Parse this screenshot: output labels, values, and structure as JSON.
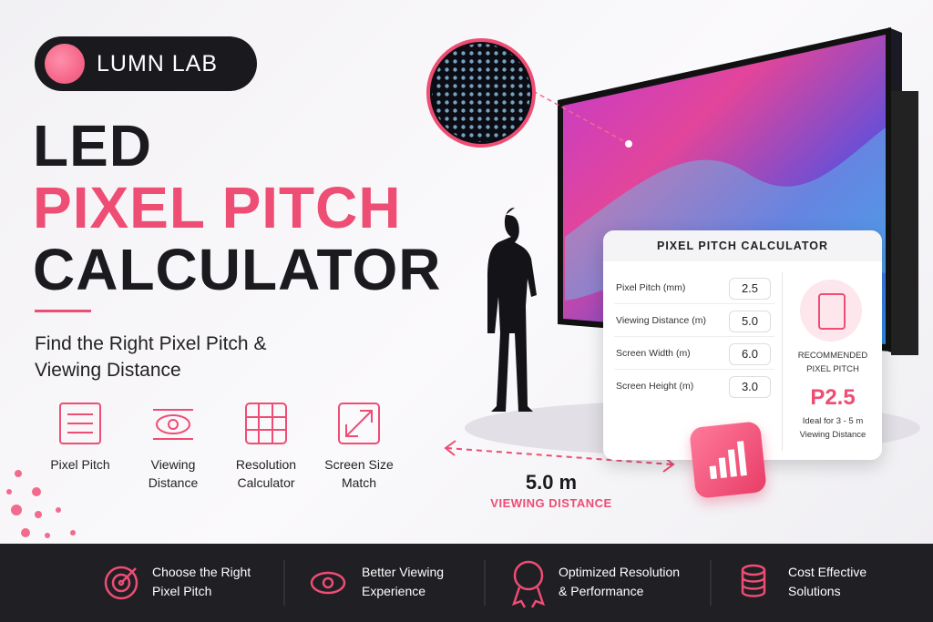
{
  "brand": "LUMN LAB",
  "headline": {
    "line1": "LED",
    "line2": "PIXEL PITCH",
    "line3": "CALCULATOR"
  },
  "subtitle_lines": [
    "Find the Right Pixel Pitch &",
    "Viewing Distance"
  ],
  "features": [
    {
      "lines": [
        "Pixel Pitch"
      ]
    },
    {
      "lines": [
        "Viewing",
        "Distance"
      ]
    },
    {
      "lines": [
        "Resolution",
        "Calculator"
      ]
    },
    {
      "lines": [
        "Screen Size",
        "Match"
      ]
    }
  ],
  "calculator": {
    "title": "PIXEL PITCH CALCULATOR",
    "fields": [
      {
        "label": "Pixel Pitch (mm)",
        "value": "2.5"
      },
      {
        "label": "Viewing Distance (m)",
        "value": "5.0"
      },
      {
        "label": "Screen Width (m)",
        "value": "6.0"
      },
      {
        "label": "Screen Height (m)",
        "value": "3.0"
      }
    ],
    "result_label_lines": [
      "RECOMMENDED",
      "PIXEL PITCH"
    ],
    "result": "P2.5",
    "note_lines": [
      "Ideal for 3 - 5 m",
      "Viewing Distance"
    ]
  },
  "distance": {
    "value": "5.0 m",
    "label": "VIEWING DISTANCE"
  },
  "benefits": [
    {
      "lines": [
        "Choose the Right",
        "Pixel Pitch"
      ]
    },
    {
      "lines": [
        "Better Viewing",
        "Experience"
      ]
    },
    {
      "lines": [
        "Optimized Resolution",
        "& Performance"
      ]
    },
    {
      "lines": [
        "Cost Effective",
        "Solutions"
      ]
    }
  ]
}
